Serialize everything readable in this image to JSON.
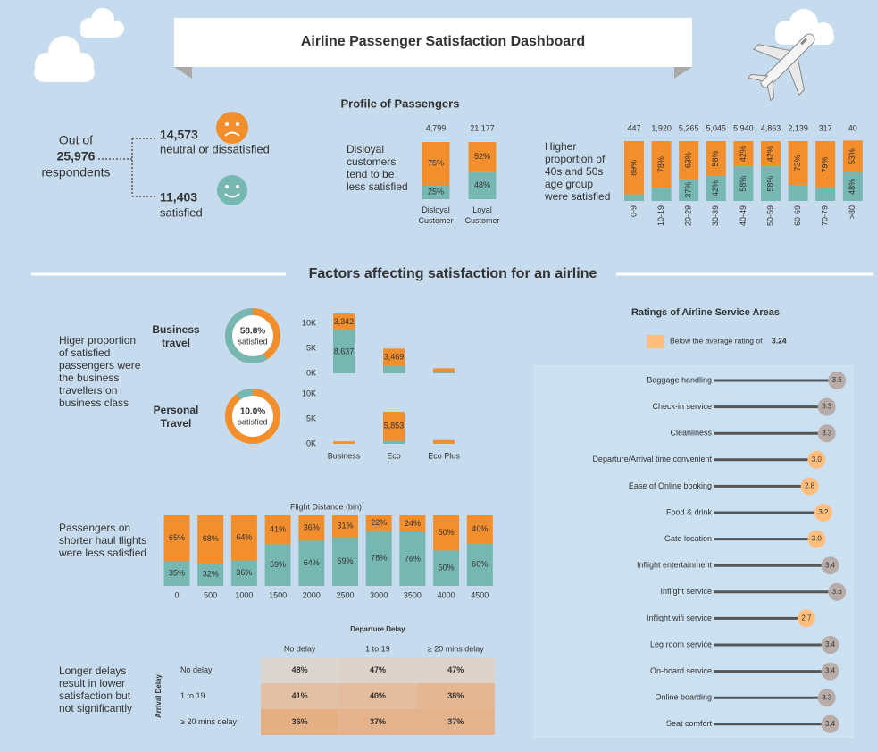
{
  "header": {
    "title": "Airline Passenger Satisfaction Dashboard"
  },
  "summary": {
    "prefix": "Out of",
    "total": "25,976",
    "suffix": "respondents",
    "dissatisfied_count": "14,573",
    "dissatisfied_label": "neutral or dissatisfied",
    "satisfied_count": "11,403",
    "satisfied_label": "satisfied"
  },
  "profile": {
    "title": "Profile of Passengers",
    "customer_note": "Disloyal customers tend to be less satisfied",
    "age_note": "Higher proportion of 40s and 50s age group were satisfied"
  },
  "factors": {
    "title": "Factors affecting satisfaction for an airline",
    "travel_note": "Higer proportion of satisfied passengers were the business travellers on business class",
    "distance_note": "Passengers on shorter haul flights were less satisfied",
    "delay_note": "Longer delays result in lower satisfaction but not significantly"
  },
  "chart_data": [
    {
      "type": "stacked-bar-100",
      "categories": [
        "Disloyal Customer",
        "Loyal Customer"
      ],
      "totals": [
        "4,799",
        "21,177"
      ],
      "ylim": [
        0,
        100
      ],
      "series": [
        {
          "color": "#76b7b2",
          "values": [
            25,
            48
          ],
          "value_labels": [
            "25%",
            "48%"
          ]
        },
        {
          "color": "#f28e2b",
          "values": [
            75,
            52
          ],
          "value_labels": [
            "75%",
            "52%"
          ]
        }
      ]
    },
    {
      "type": "stacked-bar-100",
      "categories": [
        "0-9",
        "10-19",
        "20-29",
        "30-39",
        "40-49",
        "50-59",
        "60-69",
        "70-79",
        ">80"
      ],
      "totals": [
        "447",
        "1,920",
        "5,265",
        "5,045",
        "5,940",
        "4,863",
        "2,139",
        "317",
        "40"
      ],
      "ylim": [
        0,
        100
      ],
      "series": [
        {
          "color": "#76b7b2",
          "values": [
            11,
            22,
            37,
            42,
            58,
            58,
            27,
            21,
            48
          ],
          "value_labels": [
            null,
            null,
            "37%",
            "42%",
            "58%",
            "58%",
            null,
            null,
            "48%"
          ]
        },
        {
          "color": "#f28e2b",
          "values": [
            89,
            78,
            63,
            58,
            42,
            42,
            73,
            79,
            53
          ],
          "value_labels": [
            "89%",
            "78%",
            "63%",
            "58%",
            "42%",
            "42%",
            "73%",
            "79%",
            "53%"
          ]
        }
      ]
    },
    {
      "type": "donut",
      "title": "Business travel",
      "values": [
        58.8
      ],
      "value_labels": [
        "58.8%"
      ],
      "subtitle": "satisfied",
      "colors": [
        "#76b7b2",
        "#f28e2b"
      ],
      "ylim": [
        0,
        100
      ]
    },
    {
      "type": "donut",
      "title": "Personal Travel",
      "values": [
        10.0
      ],
      "value_labels": [
        "10.0%"
      ],
      "subtitle": "satisfied",
      "colors": [
        "#76b7b2",
        "#f28e2b"
      ],
      "ylim": [
        0,
        100
      ]
    },
    {
      "type": "stacked-bar",
      "categories": [
        null,
        null,
        null
      ],
      "ylim": [
        0,
        12000
      ],
      "yticks": [
        {
          "value": 0,
          "label": "0K"
        },
        {
          "value": 5000,
          "label": "5K"
        },
        {
          "value": 10000,
          "label": "10K"
        }
      ],
      "series": [
        {
          "color": "#76b7b2",
          "values": [
            8637,
            1500,
            300
          ],
          "value_labels": [
            "8,637",
            null,
            null
          ]
        },
        {
          "color": "#f28e2b",
          "values": [
            3342,
            3469,
            700
          ],
          "value_labels": [
            "3,342",
            "3,469",
            null
          ]
        }
      ]
    },
    {
      "type": "stacked-bar",
      "categories": [
        "Business",
        "Eco",
        "Eco Plus"
      ],
      "ylim": [
        0,
        12000
      ],
      "yticks": [
        {
          "value": 0,
          "label": "0K"
        },
        {
          "value": 5000,
          "label": "5K"
        },
        {
          "value": 10000,
          "label": "10K"
        }
      ],
      "series": [
        {
          "color": "#76b7b2",
          "values": [
            100,
            600,
            100
          ],
          "value_labels": [
            null,
            null,
            null
          ]
        },
        {
          "color": "#f28e2b",
          "values": [
            400,
            5853,
            650
          ],
          "value_labels": [
            null,
            "5,853",
            null
          ]
        }
      ]
    },
    {
      "type": "stacked-bar-100",
      "title": "Flight Distance (bin)",
      "categories": [
        "0",
        "500",
        "1000",
        "1500",
        "2000",
        "2500",
        "3000",
        "3500",
        "4000",
        "4500"
      ],
      "ylim": [
        0,
        100
      ],
      "series": [
        {
          "color": "#76b7b2",
          "values": [
            35,
            32,
            36,
            59,
            64,
            69,
            78,
            76,
            50,
            60
          ],
          "value_labels": [
            "35%",
            "32%",
            "36%",
            "59%",
            "64%",
            "69%",
            "78%",
            "76%",
            "50%",
            "60%"
          ]
        },
        {
          "color": "#f28e2b",
          "values": [
            65,
            68,
            64,
            41,
            36,
            31,
            22,
            24,
            50,
            40
          ],
          "value_labels": [
            "65%",
            "68%",
            "64%",
            "41%",
            "36%",
            "31%",
            "22%",
            "24%",
            "50%",
            "40%"
          ]
        }
      ]
    },
    {
      "type": "heatmap",
      "title": "Departure Delay",
      "y_title": "Arrival Delay",
      "columns": [
        "No delay",
        "1 to 19",
        "≥ 20 mins delay"
      ],
      "rows": [
        "No delay",
        "1 to 19",
        "≥ 20 mins delay"
      ],
      "values": [
        [
          48,
          47,
          47
        ],
        [
          41,
          40,
          38
        ],
        [
          36,
          37,
          37
        ]
      ],
      "value_labels": [
        [
          "48%",
          "47%",
          "47%"
        ],
        [
          "41%",
          "40%",
          "38%"
        ],
        [
          "36%",
          "37%",
          "37%"
        ]
      ],
      "colors": [
        "#e6b085",
        "#ddd6d0"
      ]
    },
    {
      "type": "lollipop",
      "title": "Ratings of Airline Service Areas",
      "legend_label": "Below the average rating of",
      "threshold": 3.24,
      "colors": {
        "below": "#ffbe7d",
        "above": "#b8aca8"
      },
      "xlim": [
        0,
        3.7
      ],
      "categories": [
        "Baggage handling",
        "Check-in service",
        "Cleanliness",
        "Departure/Arrival time convenient",
        "Ease of Online booking",
        "Food & drink",
        "Gate location",
        "Inflight entertainment",
        "Inflight service",
        "Inflight wifi service",
        "Leg room service",
        "On-board service",
        "Online boarding",
        "Seat comfort"
      ],
      "values": [
        3.6,
        3.3,
        3.3,
        3.0,
        2.8,
        3.2,
        3.0,
        3.4,
        3.6,
        2.7,
        3.4,
        3.4,
        3.3,
        3.4
      ],
      "value_labels": [
        "3.6",
        "3.3",
        "3.3",
        "3.0",
        "2.8",
        "3.2",
        "3.0",
        "3.4",
        "3.6",
        "2.7",
        "3.4",
        "3.4",
        "3.3",
        "3.4"
      ]
    }
  ]
}
